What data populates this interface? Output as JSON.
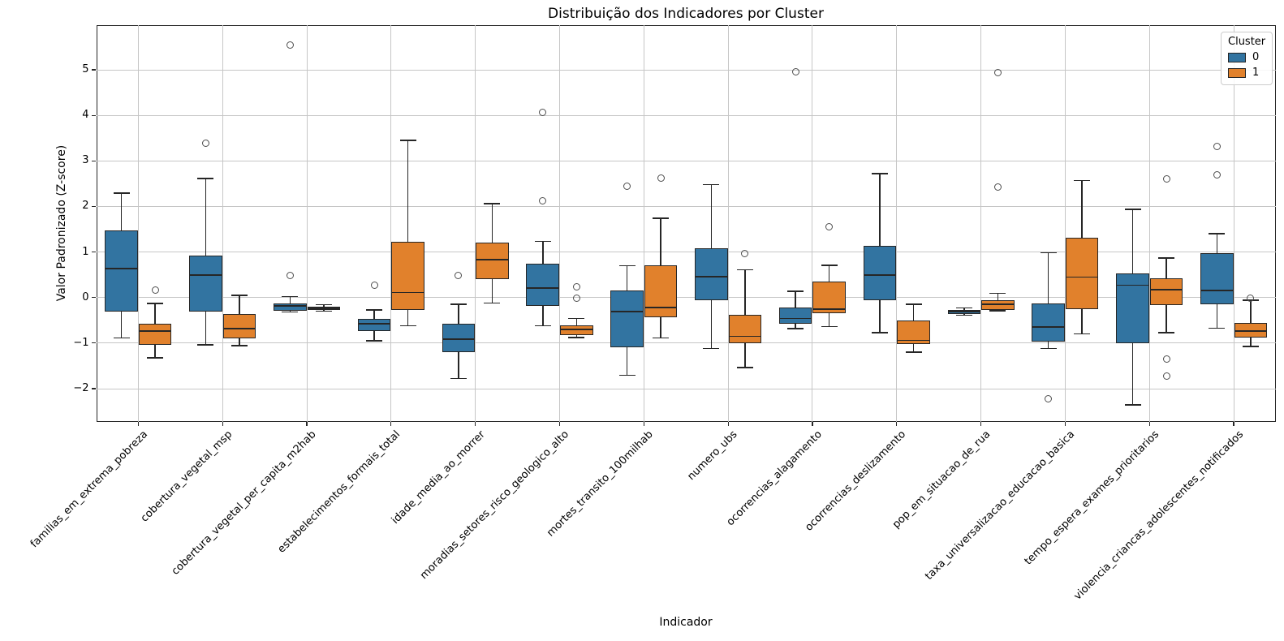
{
  "chart_data": {
    "type": "boxplot",
    "title": "Distribuição dos Indicadores por Cluster",
    "xlabel": "Indicador",
    "ylabel": "Valor Padronizado (Z-score)",
    "ylim": [
      -2.73,
      5.98
    ],
    "yticks": [
      -2,
      -1,
      0,
      1,
      2,
      3,
      4,
      5
    ],
    "grid": true,
    "legend": {
      "title": "Cluster",
      "position": "upper right"
    },
    "grid_color": "#c6c6c6",
    "box_edge_color": "#262626",
    "categories": [
      "familias_em_extrema_pobreza",
      "cobertura_vegetal_msp",
      "cobertura_vegetal_per_capita_m2hab",
      "estabelecimentos_formais_total",
      "idade_media_ao_morrer",
      "moradias_setores_risco_geologico_alto",
      "mortes_transito_100milhab",
      "numero_ubs",
      "ocorrencias_alagamento",
      "ocorrencias_deslizamento",
      "pop_em_situacao_de_rua",
      "taxa_universalizacao_educacao_basica",
      "tempo_espera_exames_prioritarios",
      "violencia_criancas_adolescentes_notificados"
    ],
    "series": [
      {
        "name": "0",
        "color": "#3274A1",
        "boxes": [
          {
            "whislo": -0.89,
            "q1": -0.3,
            "med": 0.64,
            "q3": 1.47,
            "whishi": 2.29,
            "fliers": []
          },
          {
            "whislo": -1.04,
            "q1": -0.3,
            "med": 0.49,
            "q3": 0.93,
            "whishi": 2.61,
            "fliers": [
              3.38
            ]
          },
          {
            "whislo": -0.32,
            "q1": -0.29,
            "med": -0.18,
            "q3": -0.13,
            "whishi": 0.02,
            "fliers": [
              5.55,
              0.48
            ]
          },
          {
            "whislo": -0.95,
            "q1": -0.73,
            "med": -0.58,
            "q3": -0.46,
            "whishi": -0.27,
            "fliers": [
              0.28
            ]
          },
          {
            "whislo": -1.78,
            "q1": -1.19,
            "med": -0.91,
            "q3": -0.58,
            "whishi": -0.15,
            "fliers": [
              0.48
            ]
          },
          {
            "whislo": -0.62,
            "q1": -0.18,
            "med": 0.21,
            "q3": 0.74,
            "whishi": 1.23,
            "fliers": [
              4.07,
              2.12
            ]
          },
          {
            "whislo": -1.71,
            "q1": -1.1,
            "med": -0.31,
            "q3": 0.16,
            "whishi": 0.7,
            "fliers": [
              2.45
            ]
          },
          {
            "whislo": -1.12,
            "q1": -0.05,
            "med": 0.46,
            "q3": 1.08,
            "whishi": 2.48,
            "fliers": []
          },
          {
            "whislo": -0.68,
            "q1": -0.58,
            "med": -0.46,
            "q3": -0.21,
            "whishi": 0.14,
            "fliers": [
              4.96
            ]
          },
          {
            "whislo": -0.77,
            "q1": -0.06,
            "med": 0.49,
            "q3": 1.13,
            "whishi": 2.72,
            "fliers": []
          },
          {
            "whislo": -0.39,
            "q1": -0.36,
            "med": -0.31,
            "q3": -0.27,
            "whishi": -0.23,
            "fliers": []
          },
          {
            "whislo": -1.12,
            "q1": -0.97,
            "med": -0.64,
            "q3": -0.13,
            "whishi": 0.98,
            "fliers": [
              -2.23
            ]
          },
          {
            "whislo": -2.36,
            "q1": -1.01,
            "med": 0.27,
            "q3": 0.53,
            "whishi": 1.94,
            "fliers": []
          },
          {
            "whislo": -0.67,
            "q1": -0.14,
            "med": 0.16,
            "q3": 0.98,
            "whishi": 1.4,
            "fliers": [
              3.32,
              2.69
            ]
          }
        ]
      },
      {
        "name": "1",
        "color": "#E1812C",
        "boxes": [
          {
            "whislo": -1.32,
            "q1": -1.04,
            "med": -0.74,
            "q3": -0.58,
            "whishi": -0.13,
            "fliers": [
              0.17
            ]
          },
          {
            "whislo": -1.06,
            "q1": -0.89,
            "med": -0.68,
            "q3": -0.36,
            "whishi": 0.05,
            "fliers": []
          },
          {
            "whislo": -0.3,
            "q1": -0.27,
            "med": -0.23,
            "q3": -0.2,
            "whishi": -0.16,
            "fliers": []
          },
          {
            "whislo": -0.62,
            "q1": -0.27,
            "med": 0.11,
            "q3": 1.22,
            "whishi": 3.45,
            "fliers": []
          },
          {
            "whislo": -0.12,
            "q1": 0.4,
            "med": 0.83,
            "q3": 1.2,
            "whishi": 2.06,
            "fliers": []
          },
          {
            "whislo": -0.88,
            "q1": -0.83,
            "med": -0.7,
            "q3": -0.61,
            "whishi": -0.46,
            "fliers": [
              0.23,
              -0.02
            ]
          },
          {
            "whislo": -0.89,
            "q1": -0.43,
            "med": -0.22,
            "q3": 0.71,
            "whishi": 1.74,
            "fliers": [
              2.63
            ]
          },
          {
            "whislo": -1.54,
            "q1": -1.01,
            "med": -0.85,
            "q3": -0.37,
            "whishi": 0.61,
            "fliers": [
              0.97
            ]
          },
          {
            "whislo": -0.64,
            "q1": -0.34,
            "med": -0.26,
            "q3": 0.35,
            "whishi": 0.71,
            "fliers": [
              1.55
            ]
          },
          {
            "whislo": -1.2,
            "q1": -1.02,
            "med": -0.94,
            "q3": -0.5,
            "whishi": -0.15,
            "fliers": []
          },
          {
            "whislo": -0.29,
            "q1": -0.27,
            "med": -0.15,
            "q3": -0.05,
            "whishi": 0.09,
            "fliers": [
              4.93,
              2.42
            ]
          },
          {
            "whislo": -0.8,
            "q1": -0.26,
            "med": 0.45,
            "q3": 1.31,
            "whishi": 2.57,
            "fliers": []
          },
          {
            "whislo": -0.77,
            "q1": -0.17,
            "med": 0.18,
            "q3": 0.43,
            "whishi": 0.87,
            "fliers": [
              2.6,
              -1.35,
              -1.72
            ]
          },
          {
            "whislo": -1.07,
            "q1": -0.88,
            "med": -0.74,
            "q3": -0.55,
            "whishi": -0.06,
            "fliers": [
              -0.01
            ]
          }
        ]
      }
    ]
  }
}
